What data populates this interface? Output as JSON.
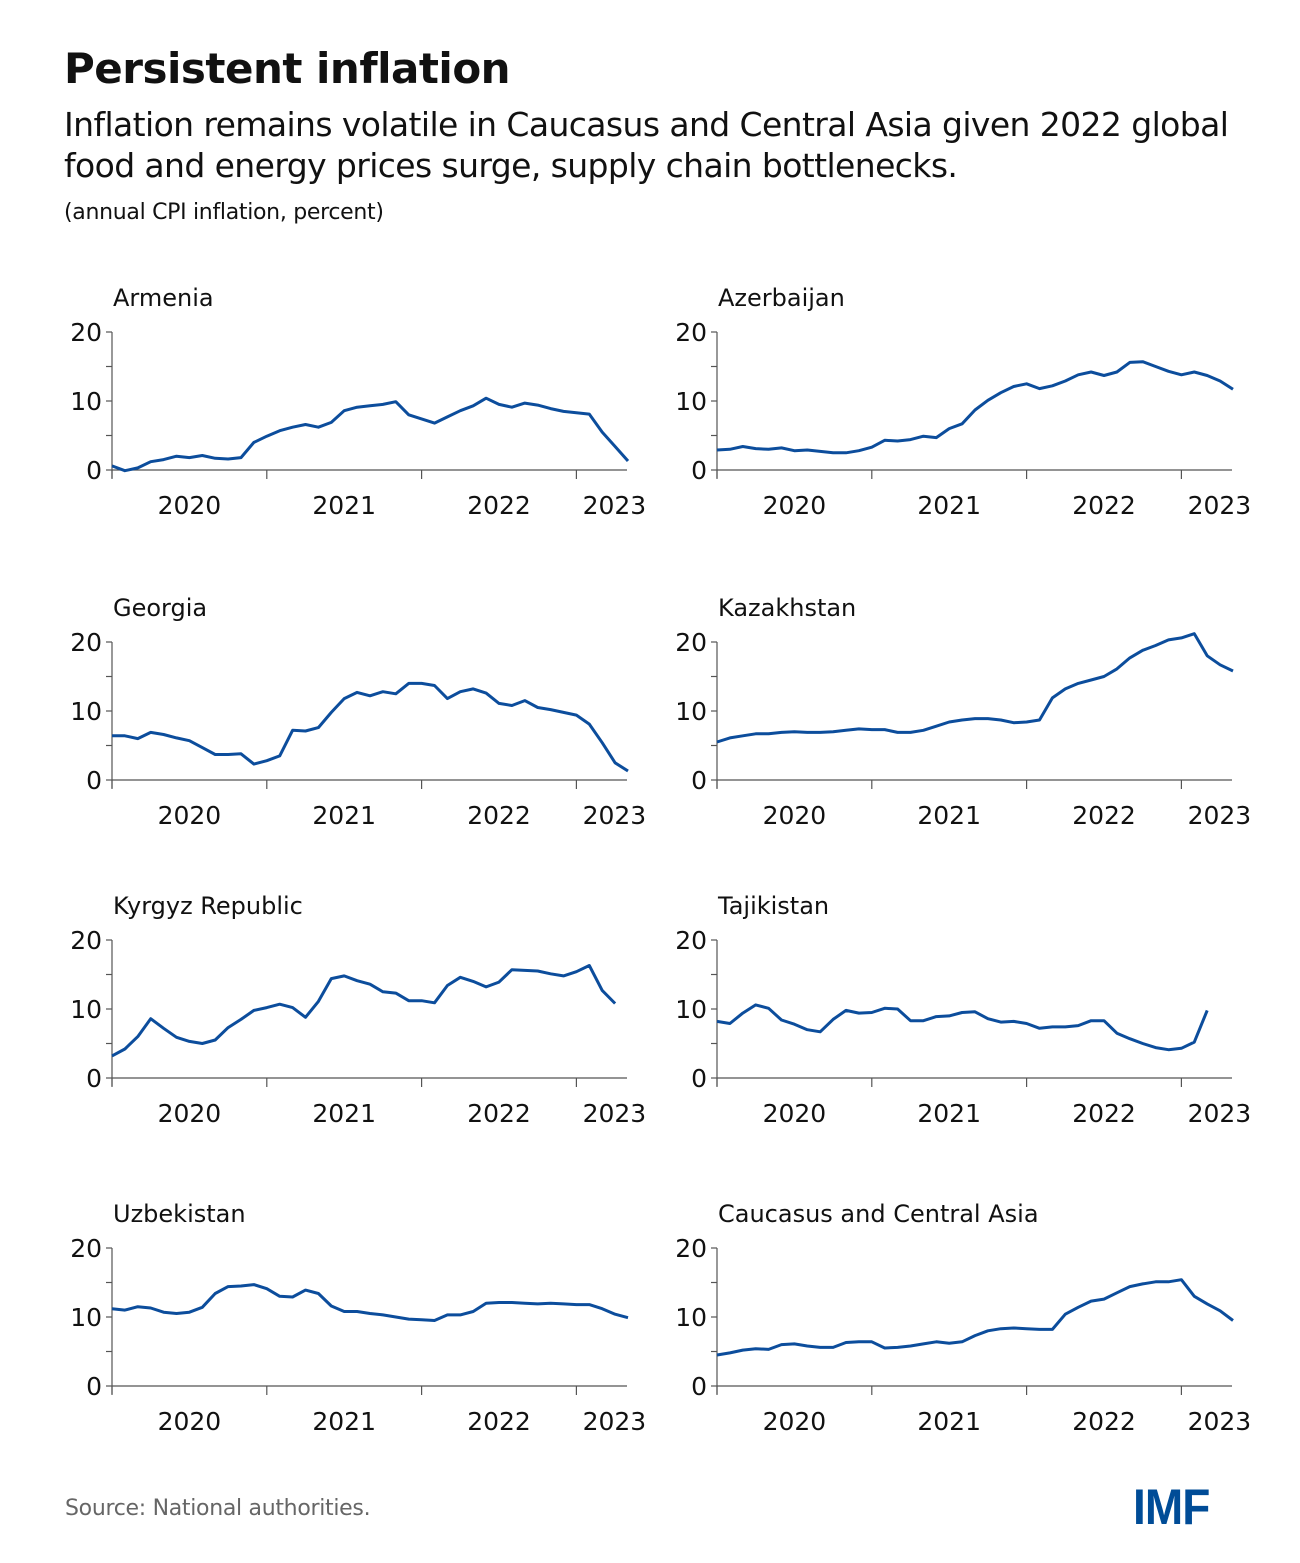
{
  "header": {
    "title": "Persistent inflation",
    "subtitle": "Inflation remains volatile in Caucasus and Central Asia given 2022 global food and energy prices surge, supply chain bottlenecks.",
    "unit": "(annual CPI inflation, percent)"
  },
  "footer": {
    "source": "Source: National authorities.",
    "logo": "IMF"
  },
  "colors": {
    "line": "#0c4d9c",
    "axis": "#555555",
    "logo": "#004c97"
  },
  "chart_data": [
    {
      "type": "line",
      "title": "Armenia",
      "start": "2020-01",
      "frequency": "monthly",
      "xtick_labels": [
        "2020",
        "2021",
        "2022",
        "2023"
      ],
      "yticks": [
        0,
        10,
        20
      ],
      "ylim": [
        0,
        20
      ],
      "values": [
        0.6,
        -0.1,
        0.3,
        1.2,
        1.5,
        2.0,
        1.8,
        2.1,
        1.7,
        1.6,
        1.8,
        4.0,
        4.9,
        5.7,
        6.2,
        6.6,
        6.2,
        6.9,
        8.6,
        9.1,
        9.3,
        9.5,
        9.9,
        8.0,
        7.4,
        6.8,
        7.7,
        8.6,
        9.3,
        10.4,
        9.5,
        9.1,
        9.7,
        9.4,
        8.9,
        8.5,
        8.3,
        8.1,
        5.5,
        3.4,
        1.3
      ]
    },
    {
      "type": "line",
      "title": "Azerbaijan",
      "start": "2020-01",
      "frequency": "monthly",
      "xtick_labels": [
        "2020",
        "2021",
        "2022",
        "2023"
      ],
      "yticks": [
        0,
        10,
        20
      ],
      "ylim": [
        0,
        20
      ],
      "values": [
        2.9,
        3.0,
        3.4,
        3.1,
        3.0,
        3.2,
        2.8,
        2.9,
        2.7,
        2.5,
        2.5,
        2.8,
        3.3,
        4.3,
        4.2,
        4.4,
        4.9,
        4.7,
        6.0,
        6.7,
        8.7,
        10.1,
        11.2,
        12.1,
        12.5,
        11.8,
        12.2,
        12.9,
        13.8,
        14.2,
        13.7,
        14.2,
        15.6,
        15.7,
        15.0,
        14.3,
        13.8,
        14.2,
        13.7,
        12.9,
        11.7
      ]
    },
    {
      "type": "line",
      "title": "Georgia",
      "start": "2020-01",
      "frequency": "monthly",
      "xtick_labels": [
        "2020",
        "2021",
        "2022",
        "2023"
      ],
      "yticks": [
        0,
        10,
        20
      ],
      "ylim": [
        0,
        20
      ],
      "values": [
        6.4,
        6.4,
        6.0,
        6.9,
        6.6,
        6.1,
        5.7,
        4.7,
        3.7,
        3.7,
        3.8,
        2.3,
        2.8,
        3.5,
        7.2,
        7.1,
        7.6,
        9.8,
        11.8,
        12.7,
        12.2,
        12.8,
        12.5,
        14.0,
        14.0,
        13.7,
        11.8,
        12.8,
        13.2,
        12.6,
        11.1,
        10.8,
        11.5,
        10.5,
        10.2,
        9.8,
        9.4,
        8.1,
        5.4,
        2.5,
        1.3
      ]
    },
    {
      "type": "line",
      "title": "Kazakhstan",
      "start": "2020-01",
      "frequency": "monthly",
      "xtick_labels": [
        "2020",
        "2021",
        "2022",
        "2023"
      ],
      "yticks": [
        0,
        10,
        20
      ],
      "ylim": [
        0,
        20
      ],
      "values": [
        5.5,
        6.1,
        6.4,
        6.7,
        6.7,
        6.9,
        7.0,
        6.9,
        6.9,
        7.0,
        7.2,
        7.4,
        7.3,
        7.3,
        6.9,
        6.9,
        7.2,
        7.8,
        8.4,
        8.7,
        8.9,
        8.9,
        8.7,
        8.3,
        8.4,
        8.7,
        11.9,
        13.2,
        14.0,
        14.5,
        15.0,
        16.1,
        17.7,
        18.8,
        19.5,
        20.3,
        20.6,
        21.2,
        18.0,
        16.7,
        15.8
      ]
    },
    {
      "type": "line",
      "title": "Kyrgyz Republic",
      "start": "2020-01",
      "frequency": "monthly",
      "xtick_labels": [
        "2020",
        "2021",
        "2022",
        "2023"
      ],
      "yticks": [
        0,
        10,
        20
      ],
      "ylim": [
        0,
        20
      ],
      "values": [
        3.2,
        4.2,
        6.0,
        8.6,
        7.2,
        5.9,
        5.3,
        5.0,
        5.5,
        7.3,
        8.5,
        9.8,
        10.2,
        10.7,
        10.2,
        8.8,
        11.1,
        14.4,
        14.8,
        14.1,
        13.6,
        12.5,
        12.3,
        11.2,
        11.2,
        10.9,
        13.4,
        14.6,
        14.0,
        13.2,
        13.9,
        15.7,
        15.6,
        15.5,
        15.1,
        14.8,
        15.4,
        16.3,
        12.7,
        10.8
      ]
    },
    {
      "type": "line",
      "title": "Tajikistan",
      "start": "2020-01",
      "frequency": "monthly",
      "xtick_labels": [
        "2020",
        "2021",
        "2022",
        "2023"
      ],
      "yticks": [
        0,
        10,
        20
      ],
      "ylim": [
        0,
        20
      ],
      "values": [
        8.2,
        7.9,
        9.4,
        10.6,
        10.1,
        8.4,
        7.8,
        7.0,
        6.7,
        8.5,
        9.8,
        9.4,
        9.5,
        10.1,
        10.0,
        8.3,
        8.3,
        8.9,
        9.0,
        9.5,
        9.6,
        8.6,
        8.1,
        8.2,
        7.9,
        7.2,
        7.4,
        7.4,
        7.6,
        8.3,
        8.3,
        6.5,
        5.7,
        5.0,
        4.4,
        4.1,
        4.3,
        5.2,
        9.8
      ]
    },
    {
      "type": "line",
      "title": "Uzbekistan",
      "start": "2020-01",
      "frequency": "monthly",
      "xtick_labels": [
        "2020",
        "2021",
        "2022",
        "2023"
      ],
      "yticks": [
        0,
        10,
        20
      ],
      "ylim": [
        0,
        20
      ],
      "values": [
        11.2,
        11.0,
        11.5,
        11.3,
        10.7,
        10.5,
        10.7,
        11.4,
        13.4,
        14.4,
        14.5,
        14.7,
        14.1,
        13.0,
        12.9,
        13.9,
        13.4,
        11.6,
        10.8,
        10.8,
        10.5,
        10.3,
        10.0,
        9.7,
        9.6,
        9.5,
        10.3,
        10.3,
        10.8,
        12.0,
        12.1,
        12.1,
        12.0,
        11.9,
        12.0,
        11.9,
        11.8,
        11.8,
        11.2,
        10.4,
        9.9
      ]
    },
    {
      "type": "line",
      "title": "Caucasus and Central Asia",
      "start": "2020-01",
      "frequency": "monthly",
      "xtick_labels": [
        "2020",
        "2021",
        "2022",
        "2023"
      ],
      "yticks": [
        0,
        10,
        20
      ],
      "ylim": [
        0,
        20
      ],
      "values": [
        4.5,
        4.8,
        5.2,
        5.4,
        5.3,
        6.0,
        6.1,
        5.8,
        5.6,
        5.6,
        6.3,
        6.4,
        6.4,
        5.5,
        5.6,
        5.8,
        6.1,
        6.4,
        6.2,
        6.4,
        7.3,
        8.0,
        8.3,
        8.4,
        8.3,
        8.2,
        8.2,
        10.4,
        11.4,
        12.3,
        12.6,
        13.5,
        14.4,
        14.8,
        15.1,
        15.1,
        15.4,
        13.0,
        11.9,
        10.9,
        9.5
      ]
    }
  ]
}
